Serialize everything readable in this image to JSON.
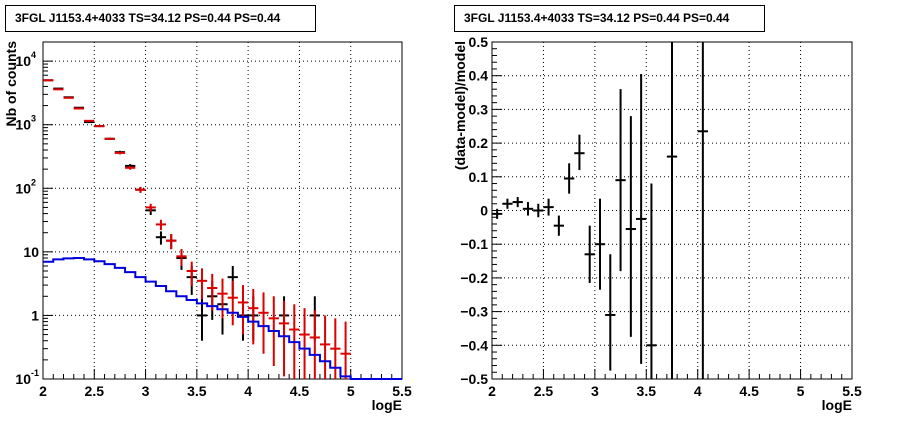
{
  "panels": [
    {
      "title": "3FGL J1153.4+4033 TS=34.12 PS=0.44 PS=0.44",
      "chart_data": {
        "type": "line",
        "xlabel": "logE",
        "ylabel": "Nb of counts",
        "xlim": [
          2,
          5.5
        ],
        "ylim": [
          0.1,
          20000
        ],
        "yscale": "log",
        "grid": true,
        "x_ticks": [
          "2",
          "2.5",
          "3",
          "3.5",
          "4",
          "4.5",
          "5",
          "5.5"
        ],
        "y_ticks": [
          {
            "value": 0.1,
            "label": "10",
            "sup": "-1"
          },
          {
            "value": 1,
            "label": "1",
            "sup": ""
          },
          {
            "value": 10,
            "label": "10",
            "sup": ""
          },
          {
            "value": 100,
            "label": "10",
            "sup": "2"
          },
          {
            "value": 1000,
            "label": "10",
            "sup": "3"
          },
          {
            "value": 10000,
            "label": "10",
            "sup": "4"
          }
        ],
        "series": [
          {
            "color": "#000000",
            "style": "errorbar",
            "x": [
              2.05,
              2.15,
              2.25,
              2.35,
              2.45,
              2.55,
              2.65,
              2.75,
              2.85,
              2.95,
              3.05,
              3.15,
              3.25,
              3.35,
              3.45,
              3.55,
              3.65,
              3.75,
              3.85,
              3.95,
              4.05,
              4.15,
              4.25,
              4.35,
              4.45,
              4.55,
              4.65,
              4.75
            ],
            "y": [
              5000,
              3700,
              2700,
              1850,
              1100,
              950,
              600,
              370,
              225,
              95,
              45,
              17,
              15,
              8,
              4,
              1,
              2,
              1.5,
              4,
              1,
              1,
              0,
              0,
              1,
              0,
              0,
              1,
              0
            ],
            "ylo": [
              4930,
              3640,
              2650,
              1807,
              1067,
              919,
              576,
              351,
              210,
              85,
              38,
              13,
              11.1,
              5.2,
              2.1,
              0.4,
              0.85,
              0.5,
              2.1,
              0.4,
              0.4,
              0,
              0,
              0.4,
              0,
              0,
              0.4,
              0
            ],
            "yhi": [
              5070,
              3760,
              2750,
              1893,
              1133,
              981,
              624,
              389,
              240,
              105,
              52,
              21,
              19,
              11,
              6,
              2,
              3.5,
              3,
              6,
              2,
              2,
              0,
              0,
              2,
              0,
              0,
              2,
              0
            ]
          },
          {
            "color": "#dd0000",
            "style": "errorbar",
            "x": [
              2.05,
              2.15,
              2.25,
              2.35,
              2.45,
              2.55,
              2.65,
              2.75,
              2.85,
              2.95,
              3.05,
              3.15,
              3.25,
              3.35,
              3.45,
              3.55,
              3.65,
              3.75,
              3.85,
              3.95,
              4.05,
              4.15,
              4.25,
              4.35,
              4.45,
              4.55,
              4.65,
              4.75,
              4.85,
              4.95
            ],
            "y": [
              5000,
              3600,
              2650,
              1800,
              1150,
              950,
              600,
              360,
              210,
              95,
              50,
              27,
              15,
              8.5,
              5,
              3.5,
              2.7,
              2.2,
              1.9,
              1.6,
              1.3,
              1.1,
              0.9,
              0.75,
              0.6,
              0.5,
              0.45,
              0.35,
              0.3,
              0.25
            ],
            "ylo": [
              4930,
              3540,
              2600,
              1757,
              1116,
              919,
              576,
              341,
              196,
              85,
              43,
              22,
              11,
              6,
              2.9,
              1.8,
              1.2,
              0.9,
              0.7,
              0.5,
              0.35,
              0.25,
              0.16,
              0.11,
              0.1,
              0.1,
              0.1,
              0.1,
              0.1,
              0.1
            ],
            "yhi": [
              5070,
              3660,
              2700,
              1843,
              1184,
              981,
              624,
              379,
              224,
              105,
              57,
              32,
              19,
              11,
              7,
              5.5,
              4.5,
              3.8,
              3.5,
              3.0,
              2.6,
              2.3,
              2.0,
              1.7,
              1.5,
              1.3,
              1.2,
              1.0,
              0.9,
              0.8
            ]
          },
          {
            "color": "#0000dd",
            "style": "step",
            "edges": [
              2.0,
              2.1,
              2.2,
              2.3,
              2.4,
              2.5,
              2.6,
              2.7,
              2.8,
              2.9,
              3.0,
              3.1,
              3.2,
              3.3,
              3.4,
              3.5,
              3.6,
              3.7,
              3.8,
              3.9,
              4.0,
              4.1,
              4.2,
              4.3,
              4.4,
              4.5,
              4.6,
              4.7,
              4.8,
              4.9,
              5.0,
              5.1,
              5.2,
              5.3,
              5.4,
              5.5
            ],
            "values": [
              7.0,
              7.6,
              7.9,
              8.0,
              7.6,
              7.1,
              6.4,
              5.6,
              4.8,
              4.0,
              3.4,
              2.9,
              2.4,
              2.0,
              1.75,
              1.55,
              1.4,
              1.25,
              1.1,
              0.95,
              0.8,
              0.68,
              0.57,
              0.47,
              0.38,
              0.3,
              0.24,
              0.19,
              0.15,
              0.11,
              0.1,
              0.1,
              0.1,
              0.1,
              0.1
            ]
          }
        ]
      }
    },
    {
      "title": "3FGL J1153.4+4033 TS=34.12 PS=0.44 PS=0.44",
      "chart_data": {
        "type": "scatter",
        "xlabel": "logE",
        "ylabel": "(data-model)/model",
        "xlim": [
          2,
          5.5
        ],
        "ylim": [
          -0.5,
          0.5
        ],
        "yscale": "linear",
        "grid": true,
        "x_ticks": [
          "2",
          "2.5",
          "3",
          "3.5",
          "4",
          "4.5",
          "5",
          "5.5"
        ],
        "y_ticks": [
          {
            "value": -0.5,
            "label": "−0.5",
            "sup": ""
          },
          {
            "value": -0.4,
            "label": "−0.4",
            "sup": ""
          },
          {
            "value": -0.3,
            "label": "−0.3",
            "sup": ""
          },
          {
            "value": -0.2,
            "label": "−0.2",
            "sup": ""
          },
          {
            "value": -0.1,
            "label": "−0.1",
            "sup": ""
          },
          {
            "value": 0,
            "label": "0",
            "sup": ""
          },
          {
            "value": 0.1,
            "label": "0.1",
            "sup": ""
          },
          {
            "value": 0.2,
            "label": "0.2",
            "sup": ""
          },
          {
            "value": 0.3,
            "label": "0.3",
            "sup": ""
          },
          {
            "value": 0.4,
            "label": "0.4",
            "sup": ""
          },
          {
            "value": 0.5,
            "label": "0.5",
            "sup": ""
          }
        ],
        "series": [
          {
            "color": "#000000",
            "style": "errorbar",
            "x": [
              2.05,
              2.15,
              2.25,
              2.35,
              2.45,
              2.55,
              2.65,
              2.75,
              2.85,
              2.95,
              3.05,
              3.15,
              3.25,
              3.35,
              3.45,
              3.55,
              3.75,
              4.05
            ],
            "y": [
              -0.01,
              0.02,
              0.025,
              0.005,
              0.0,
              0.01,
              -0.045,
              0.095,
              0.17,
              -0.13,
              -0.1,
              -0.31,
              0.09,
              -0.055,
              -0.025,
              -0.4,
              0.16,
              0.235
            ],
            "ylo": [
              -0.025,
              0.005,
              0.01,
              -0.015,
              -0.02,
              -0.015,
              -0.075,
              0.05,
              0.12,
              -0.215,
              -0.235,
              -0.475,
              -0.18,
              -0.375,
              -0.455,
              -0.5,
              -0.5,
              -0.5
            ],
            "yhi": [
              0.005,
              0.035,
              0.04,
              0.025,
              0.02,
              0.035,
              -0.015,
              0.14,
              0.225,
              -0.045,
              0.035,
              -0.13,
              0.36,
              0.28,
              0.405,
              0.08,
              0.5,
              0.5
            ]
          }
        ]
      }
    }
  ]
}
